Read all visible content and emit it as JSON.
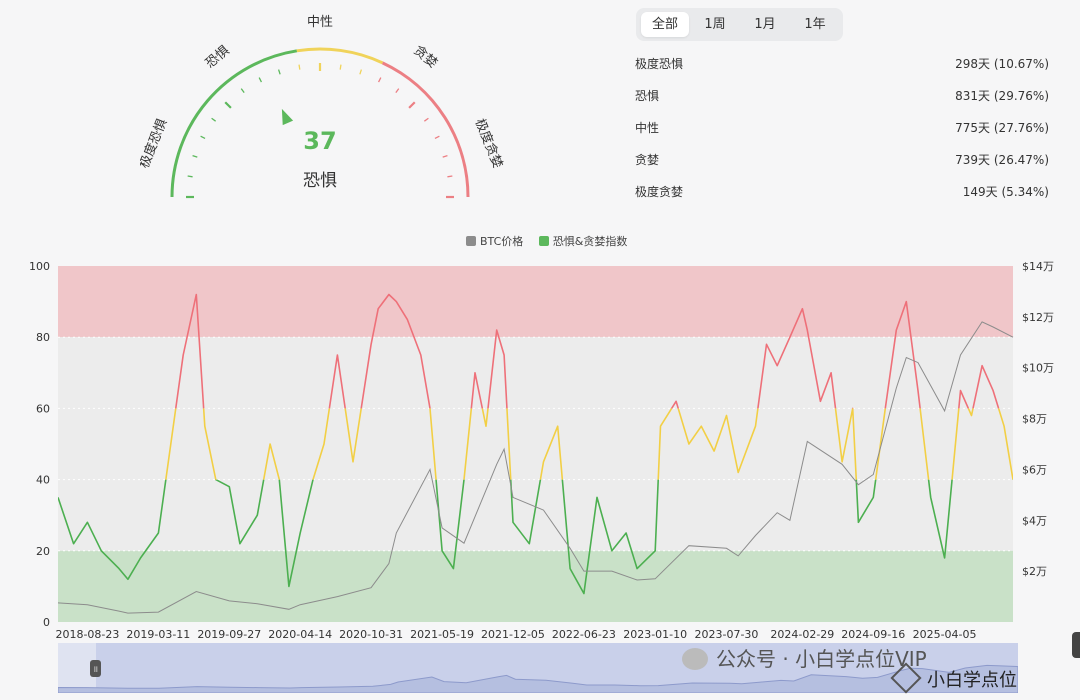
{
  "gauge": {
    "value": 37,
    "label": "恐惧",
    "zone_labels": [
      "极度恐惧",
      "恐惧",
      "中性",
      "贪婪",
      "极度贪婪"
    ],
    "colors": {
      "fear": "#5cb85c",
      "neutral": "#f0d35a",
      "greed": "#ec7f84"
    }
  },
  "tabs": [
    "全部",
    "1周",
    "1月",
    "1年"
  ],
  "active_tab": "全部",
  "stats": [
    {
      "label": "极度恐惧",
      "value": "298天 (10.67%)"
    },
    {
      "label": "恐惧",
      "value": "831天 (29.76%)"
    },
    {
      "label": "中性",
      "value": "775天 (27.76%)"
    },
    {
      "label": "贪婪",
      "value": "739天 (26.47%)"
    },
    {
      "label": "极度贪婪",
      "value": "149天 (5.34%)"
    }
  ],
  "legend": [
    {
      "name": "BTC价格",
      "color": "#8c8c8c"
    },
    {
      "name": "恐惧&贪婪指数",
      "color": "#5cb85c"
    }
  ],
  "watermark": {
    "text1": "公众号 · 小白学点位VIP",
    "text2": "小白学点位"
  },
  "chart_data": {
    "type": "line",
    "x_ticks": [
      "2018-08-23",
      "2019-03-11",
      "2019-09-27",
      "2020-04-14",
      "2020-10-31",
      "2021-05-19",
      "2021-12-05",
      "2022-06-23",
      "2023-01-10",
      "2023-07-30",
      "2024-02-29",
      "2024-09-16",
      "2025-04-05"
    ],
    "y_left_ticks": [
      "0",
      "20",
      "40",
      "60",
      "80",
      "100"
    ],
    "y_right_ticks": [
      "$2万",
      "$4万",
      "$6万",
      "$8万",
      "$10万",
      "$12万",
      "$14万"
    ],
    "ylim_left": [
      0,
      100
    ],
    "ylim_right": [
      0,
      140000
    ],
    "xlim": [
      "2018-06-01",
      "2025-10-15"
    ],
    "bands": [
      {
        "from": 80,
        "to": 100,
        "color": "#f0c6c9"
      },
      {
        "from": 20,
        "to": 80,
        "color": "#ececec"
      },
      {
        "from": 0,
        "to": 20,
        "color": "#c9e1c8"
      }
    ],
    "series": [
      {
        "name": "恐惧&贪婪指数",
        "axis": "left",
        "x": [
          "2018-06-01",
          "2018-07-15",
          "2018-08-23",
          "2018-10-01",
          "2018-11-20",
          "2018-12-15",
          "2019-01-20",
          "2019-03-11",
          "2019-04-15",
          "2019-05-20",
          "2019-06-26",
          "2019-07-20",
          "2019-08-20",
          "2019-09-27",
          "2019-10-27",
          "2019-12-15",
          "2020-01-20",
          "2020-02-15",
          "2020-03-13",
          "2020-04-14",
          "2020-05-20",
          "2020-06-20",
          "2020-07-28",
          "2020-09-10",
          "2020-10-31",
          "2020-11-20",
          "2020-12-20",
          "2021-01-10",
          "2021-02-10",
          "2021-03-20",
          "2021-04-15",
          "2021-05-19",
          "2021-06-20",
          "2021-07-20",
          "2021-08-20",
          "2021-09-20",
          "2021-10-20",
          "2021-11-10",
          "2021-12-05",
          "2022-01-20",
          "2022-03-01",
          "2022-04-10",
          "2022-05-15",
          "2022-06-23",
          "2022-07-30",
          "2022-09-10",
          "2022-10-20",
          "2022-11-20",
          "2023-01-10",
          "2023-01-25",
          "2023-03-10",
          "2023-04-15",
          "2023-05-20",
          "2023-06-25",
          "2023-07-30",
          "2023-09-01",
          "2023-10-20",
          "2023-11-20",
          "2023-12-20",
          "2024-01-25",
          "2024-02-29",
          "2024-03-14",
          "2024-04-20",
          "2024-05-20",
          "2024-06-20",
          "2024-07-20",
          "2024-08-05",
          "2024-09-16",
          "2024-10-20",
          "2024-11-20",
          "2024-12-18",
          "2025-01-20",
          "2025-02-25",
          "2025-04-05",
          "2025-04-09",
          "2025-05-20",
          "2025-06-20",
          "2025-07-20",
          "2025-08-20",
          "2025-09-20",
          "2025-10-15"
        ],
        "y": [
          35,
          22,
          28,
          20,
          15,
          12,
          18,
          25,
          50,
          75,
          92,
          55,
          40,
          38,
          22,
          30,
          50,
          40,
          10,
          25,
          40,
          50,
          75,
          45,
          78,
          88,
          92,
          90,
          85,
          75,
          60,
          20,
          15,
          40,
          70,
          55,
          82,
          75,
          28,
          22,
          45,
          55,
          15,
          8,
          35,
          20,
          25,
          15,
          20,
          55,
          62,
          50,
          55,
          48,
          58,
          42,
          55,
          78,
          72,
          80,
          88,
          82,
          62,
          70,
          45,
          60,
          28,
          35,
          60,
          82,
          90,
          65,
          35,
          18,
          22,
          65,
          58,
          72,
          65,
          55,
          40
        ]
      },
      {
        "name": "BTC价格",
        "axis": "right",
        "x": [
          "2018-06-01",
          "2018-08-23",
          "2018-11-20",
          "2018-12-15",
          "2019-03-11",
          "2019-06-26",
          "2019-09-27",
          "2019-12-15",
          "2020-03-13",
          "2020-04-14",
          "2020-07-28",
          "2020-10-31",
          "2020-12-20",
          "2021-01-10",
          "2021-04-15",
          "2021-05-19",
          "2021-07-20",
          "2021-10-20",
          "2021-11-10",
          "2021-12-05",
          "2022-03-01",
          "2022-05-15",
          "2022-06-23",
          "2022-09-10",
          "2022-11-20",
          "2023-01-10",
          "2023-04-15",
          "2023-07-30",
          "2023-09-01",
          "2023-10-20",
          "2023-12-20",
          "2024-01-25",
          "2024-03-14",
          "2024-06-20",
          "2024-08-05",
          "2024-09-16",
          "2024-11-20",
          "2024-12-18",
          "2025-01-20",
          "2025-04-05",
          "2025-05-20",
          "2025-07-20",
          "2025-08-20",
          "2025-10-15"
        ],
        "y": [
          7500,
          6800,
          4300,
          3500,
          3900,
          12000,
          8300,
          7200,
          5000,
          6800,
          10000,
          13500,
          23000,
          35000,
          60000,
          37000,
          31000,
          62000,
          68000,
          49000,
          44000,
          29000,
          20000,
          20000,
          16500,
          17000,
          30000,
          29000,
          26000,
          34000,
          43000,
          40000,
          71000,
          62000,
          54000,
          58000,
          92000,
          104000,
          102000,
          83000,
          105000,
          118000,
          116000,
          112000
        ]
      }
    ]
  }
}
